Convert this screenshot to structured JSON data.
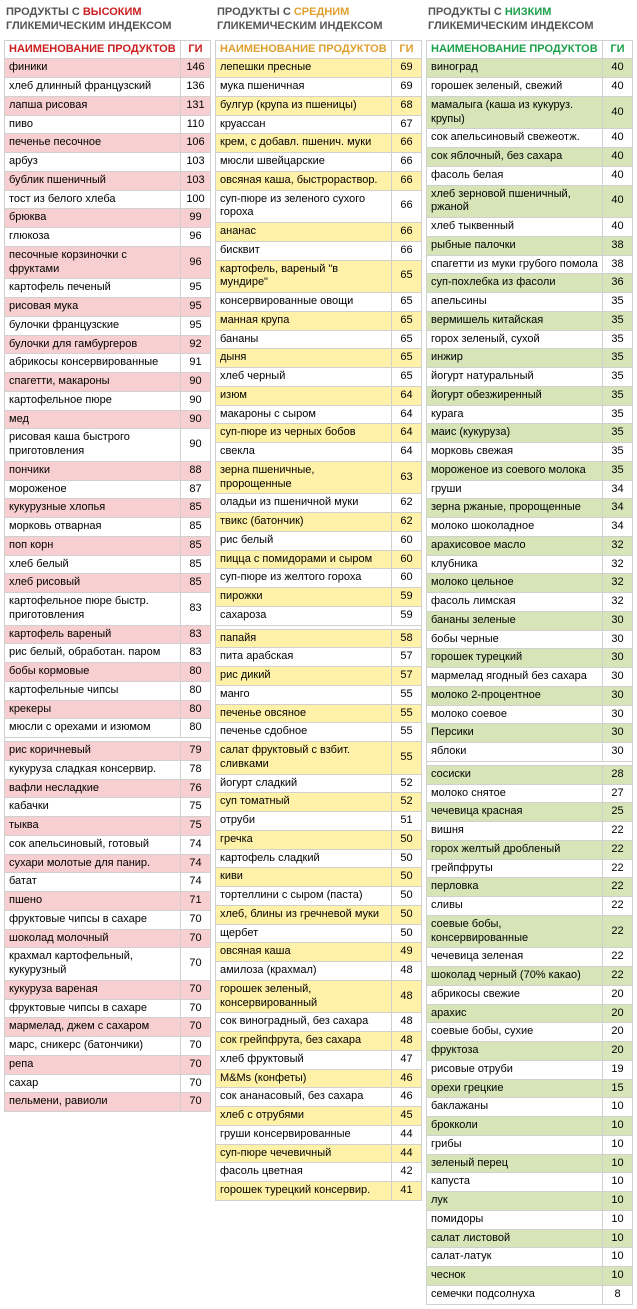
{
  "title_prefix": "ПРОДУКТЫ С ",
  "title_suffix": " ГЛИКЕМИЧЕСКИМ ИНДЕКСОМ",
  "header_name": "НАИМЕНОВАНИЕ ПРОДУКТОВ",
  "header_gi": "ГИ",
  "gap_after_gi": {
    "high": 80,
    "medium": 59,
    "low": 30
  },
  "columns": [
    {
      "key": "high",
      "level_word": "ВЫСОКИМ",
      "accent": "#cc1f1f",
      "header_text": "#cc1f1f",
      "stripe_bg": "#f7cfd0",
      "plain_bg": "#ffffff",
      "rows": [
        {
          "n": "финики",
          "g": 146
        },
        {
          "n": "хлеб длинный французский",
          "g": 136
        },
        {
          "n": "лапша рисовая",
          "g": 131
        },
        {
          "n": "пиво",
          "g": 110
        },
        {
          "n": "печенье песочное",
          "g": 106
        },
        {
          "n": "арбуз",
          "g": 103
        },
        {
          "n": "бублик пшеничный",
          "g": 103
        },
        {
          "n": "тост из белого хлеба",
          "g": 100
        },
        {
          "n": "брюква",
          "g": 99
        },
        {
          "n": "глюкоза",
          "g": 96
        },
        {
          "n": "песочные корзиночки с фруктами",
          "g": 96
        },
        {
          "n": "картофель печеный",
          "g": 95
        },
        {
          "n": "рисовая мука",
          "g": 95
        },
        {
          "n": "булочки французские",
          "g": 95
        },
        {
          "n": "булочки для гамбургеров",
          "g": 92
        },
        {
          "n": "абрикосы консервированные",
          "g": 91
        },
        {
          "n": "спагетти, макароны",
          "g": 90
        },
        {
          "n": "картофельное пюре",
          "g": 90
        },
        {
          "n": "мед",
          "g": 90
        },
        {
          "n": "рисовая каша быстрого приготовления",
          "g": 90
        },
        {
          "n": "пончики",
          "g": 88
        },
        {
          "n": "мороженое",
          "g": 87
        },
        {
          "n": "кукурузные хлопья",
          "g": 85
        },
        {
          "n": "морковь отварная",
          "g": 85
        },
        {
          "n": "поп корн",
          "g": 85
        },
        {
          "n": "хлеб белый",
          "g": 85
        },
        {
          "n": "хлеб рисовый",
          "g": 85
        },
        {
          "n": "картофельное пюре быстр. приготовления",
          "g": 83
        },
        {
          "n": "картофель вареный",
          "g": 83
        },
        {
          "n": "рис белый, обработан. паром",
          "g": 83
        },
        {
          "n": "бобы кормовые",
          "g": 80
        },
        {
          "n": "картофельные чипсы",
          "g": 80
        },
        {
          "n": "крекеры",
          "g": 80
        },
        {
          "n": "мюсли с орехами и изюмом",
          "g": 80
        },
        {
          "n": "рис коричневый",
          "g": 79
        },
        {
          "n": "кукуруза сладкая консервир.",
          "g": 78
        },
        {
          "n": "вафли несладкие",
          "g": 76
        },
        {
          "n": "кабачки",
          "g": 75
        },
        {
          "n": "тыква",
          "g": 75
        },
        {
          "n": "сок апельсиновый, готовый",
          "g": 74
        },
        {
          "n": "сухари молотые для панир.",
          "g": 74
        },
        {
          "n": "батат",
          "g": 74
        },
        {
          "n": "пшено",
          "g": 71
        },
        {
          "n": "фруктовые чипсы в сахаре",
          "g": 70
        },
        {
          "n": "шоколад молочный",
          "g": 70
        },
        {
          "n": "крахмал картофельный, кукурузный",
          "g": 70
        },
        {
          "n": "кукуруза вареная",
          "g": 70
        },
        {
          "n": "фруктовые чипсы в сахаре",
          "g": 70
        },
        {
          "n": "мармелад, джем с сахаром",
          "g": 70
        },
        {
          "n": "марс, сникерс (батончики)",
          "g": 70
        },
        {
          "n": "репа",
          "g": 70
        },
        {
          "n": "сахар",
          "g": 70
        },
        {
          "n": "пельмени, равиоли",
          "g": 70
        }
      ]
    },
    {
      "key": "medium",
      "level_word": "СРЕДНИМ",
      "accent": "#e0a030",
      "header_text": "#e0a030",
      "stripe_bg": "#fff2a8",
      "plain_bg": "#ffffff",
      "rows": [
        {
          "n": "лепешки пресные",
          "g": 69
        },
        {
          "n": "мука пшеничная",
          "g": 69
        },
        {
          "n": "булгур (крупа из пшеницы)",
          "g": 68
        },
        {
          "n": "круассан",
          "g": 67
        },
        {
          "n": "крем, с добавл. пшенич. муки",
          "g": 66
        },
        {
          "n": "мюсли швейцарские",
          "g": 66
        },
        {
          "n": "овсяная каша, быстрораствор.",
          "g": 66
        },
        {
          "n": "суп-пюре из зеленого сухого гороха",
          "g": 66
        },
        {
          "n": "ананас",
          "g": 66
        },
        {
          "n": "бисквит",
          "g": 66
        },
        {
          "n": "картофель, вареный \"в мундире\"",
          "g": 65
        },
        {
          "n": "консервированные овощи",
          "g": 65
        },
        {
          "n": "манная крупа",
          "g": 65
        },
        {
          "n": "бананы",
          "g": 65
        },
        {
          "n": "дыня",
          "g": 65
        },
        {
          "n": "хлеб черный",
          "g": 65
        },
        {
          "n": "изюм",
          "g": 64
        },
        {
          "n": "макароны с сыром",
          "g": 64
        },
        {
          "n": "суп-пюре из черных бобов",
          "g": 64
        },
        {
          "n": "свекла",
          "g": 64
        },
        {
          "n": "зерна пшеничные, пророщенные",
          "g": 63
        },
        {
          "n": "оладьи из пшеничной муки",
          "g": 62
        },
        {
          "n": "твикс (батончик)",
          "g": 62
        },
        {
          "n": "рис белый",
          "g": 60
        },
        {
          "n": "пицца с помидорами и сыром",
          "g": 60
        },
        {
          "n": "суп-пюре из желтого гороха",
          "g": 60
        },
        {
          "n": "пирожки",
          "g": 59
        },
        {
          "n": "сахароза",
          "g": 59
        },
        {
          "n": "папайя",
          "g": 58
        },
        {
          "n": "пита арабская",
          "g": 57
        },
        {
          "n": "рис дикий",
          "g": 57
        },
        {
          "n": "манго",
          "g": 55
        },
        {
          "n": "печенье овсяное",
          "g": 55
        },
        {
          "n": "печенье сдобное",
          "g": 55
        },
        {
          "n": "салат фруктовый с взбит. сливками",
          "g": 55
        },
        {
          "n": "йогурт сладкий",
          "g": 52
        },
        {
          "n": "суп томатный",
          "g": 52
        },
        {
          "n": "отруби",
          "g": 51
        },
        {
          "n": "гречка",
          "g": 50
        },
        {
          "n": "картофель сладкий",
          "g": 50
        },
        {
          "n": "киви",
          "g": 50
        },
        {
          "n": "тортеллини с сыром (паста)",
          "g": 50
        },
        {
          "n": "хлеб, блины из гречневой муки",
          "g": 50
        },
        {
          "n": "щербет",
          "g": 50
        },
        {
          "n": "овсяная каша",
          "g": 49
        },
        {
          "n": "амилоза (крахмал)",
          "g": 48
        },
        {
          "n": "горошек зеленый, консервированный",
          "g": 48
        },
        {
          "n": "сок виноградный, без сахара",
          "g": 48
        },
        {
          "n": "сок грейпфрута, без сахара",
          "g": 48
        },
        {
          "n": "хлеб фруктовый",
          "g": 47
        },
        {
          "n": "M&Ms (конфеты)",
          "g": 46
        },
        {
          "n": "сок ананасовый, без сахара",
          "g": 46
        },
        {
          "n": "хлеб с отрубями",
          "g": 45
        },
        {
          "n": "груши консервированные",
          "g": 44
        },
        {
          "n": "суп-пюре чечевичный",
          "g": 44
        },
        {
          "n": "фасоль цветная",
          "g": 42
        },
        {
          "n": "горошек турецкий консервир.",
          "g": 41
        }
      ]
    },
    {
      "key": "low",
      "level_word": "НИЗКИМ",
      "accent": "#1da04a",
      "header_text": "#1da04a",
      "stripe_bg": "#d7e4b8",
      "plain_bg": "#ffffff",
      "rows": [
        {
          "n": "виноград",
          "g": 40
        },
        {
          "n": "горошек зеленый, свежий",
          "g": 40
        },
        {
          "n": "мамалыга (каша из кукуруз. крупы)",
          "g": 40
        },
        {
          "n": "сок апельсиновый свежеотж.",
          "g": 40
        },
        {
          "n": "сок яблочный, без сахара",
          "g": 40
        },
        {
          "n": "фасоль белая",
          "g": 40
        },
        {
          "n": "хлеб зерновой пшеничный, ржаной",
          "g": 40
        },
        {
          "n": "хлеб тыквенный",
          "g": 40
        },
        {
          "n": "рыбные палочки",
          "g": 38
        },
        {
          "n": "спагетти из муки грубого помола",
          "g": 38
        },
        {
          "n": "суп-похлебка из фасоли",
          "g": 36
        },
        {
          "n": "апельсины",
          "g": 35
        },
        {
          "n": "вермишель китайская",
          "g": 35
        },
        {
          "n": "горох зеленый, сухой",
          "g": 35
        },
        {
          "n": "инжир",
          "g": 35
        },
        {
          "n": "йогурт натуральный",
          "g": 35
        },
        {
          "n": "йогурт обезжиренный",
          "g": 35
        },
        {
          "n": "курага",
          "g": 35
        },
        {
          "n": "маис (кукуруза)",
          "g": 35
        },
        {
          "n": "морковь свежая",
          "g": 35
        },
        {
          "n": "мороженое из соевого молока",
          "g": 35
        },
        {
          "n": "груши",
          "g": 34
        },
        {
          "n": "зерна ржаные, пророщенные",
          "g": 34
        },
        {
          "n": "молоко шоколадное",
          "g": 34
        },
        {
          "n": "арахисовое масло",
          "g": 32
        },
        {
          "n": "клубника",
          "g": 32
        },
        {
          "n": "молоко цельное",
          "g": 32
        },
        {
          "n": "фасоль лимская",
          "g": 32
        },
        {
          "n": "бананы зеленые",
          "g": 30
        },
        {
          "n": "бобы черные",
          "g": 30
        },
        {
          "n": "горошек турецкий",
          "g": 30
        },
        {
          "n": "мармелад ягодный без сахара",
          "g": 30
        },
        {
          "n": "молоко 2-процентное",
          "g": 30
        },
        {
          "n": "молоко соевое",
          "g": 30
        },
        {
          "n": "Персики",
          "g": 30
        },
        {
          "n": "яблоки",
          "g": 30
        },
        {
          "n": "сосиски",
          "g": 28
        },
        {
          "n": "молоко снятое",
          "g": 27
        },
        {
          "n": "чечевица красная",
          "g": 25
        },
        {
          "n": "вишня",
          "g": 22
        },
        {
          "n": "горох желтый дробленый",
          "g": 22
        },
        {
          "n": "грейпфруты",
          "g": 22
        },
        {
          "n": "перловка",
          "g": 22
        },
        {
          "n": "сливы",
          "g": 22
        },
        {
          "n": "соевые бобы, консервированные",
          "g": 22
        },
        {
          "n": "чечевица зеленая",
          "g": 22
        },
        {
          "n": "шоколад черный (70% какао)",
          "g": 22
        },
        {
          "n": "абрикосы свежие",
          "g": 20
        },
        {
          "n": "арахис",
          "g": 20
        },
        {
          "n": "соевые бобы, сухие",
          "g": 20
        },
        {
          "n": "фруктоза",
          "g": 20
        },
        {
          "n": "рисовые отруби",
          "g": 19
        },
        {
          "n": "орехи грецкие",
          "g": 15
        },
        {
          "n": "баклажаны",
          "g": 10
        },
        {
          "n": "брокколи",
          "g": 10
        },
        {
          "n": "грибы",
          "g": 10
        },
        {
          "n": "зеленый перец",
          "g": 10
        },
        {
          "n": "капуста",
          "g": 10
        },
        {
          "n": "лук",
          "g": 10
        },
        {
          "n": "помидоры",
          "g": 10
        },
        {
          "n": "салат листовой",
          "g": 10
        },
        {
          "n": "салат-латук",
          "g": 10
        },
        {
          "n": "чеснок",
          "g": 10
        },
        {
          "n": "семечки подсолнуха",
          "g": 8
        }
      ]
    }
  ]
}
